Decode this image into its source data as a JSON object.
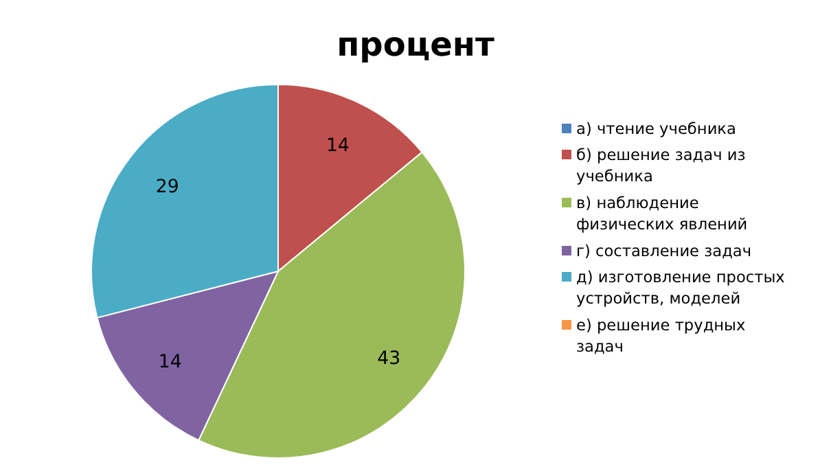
{
  "chart_data": {
    "type": "pie",
    "title": "процент",
    "categories": [
      "а) чтение учебника",
      "б) решение задач из учебника",
      "в) наблюдение физических явлений",
      "г) составление задач",
      "д) изготовление простых устройств, моделей",
      "е) решение трудных задач"
    ],
    "values": [
      0,
      14,
      43,
      14,
      29,
      0
    ],
    "colors": [
      "#4f81bd",
      "#c0504d",
      "#9bbb59",
      "#8064a2",
      "#4bacc6",
      "#f79646"
    ],
    "value_labels": [
      null,
      "14",
      "43",
      "14",
      "29",
      null
    ],
    "legend": "right"
  }
}
